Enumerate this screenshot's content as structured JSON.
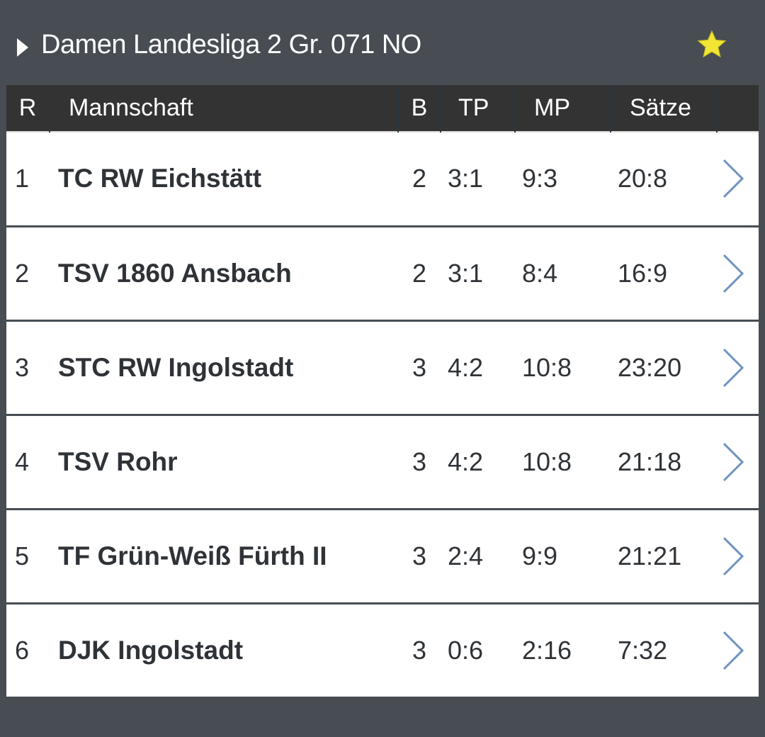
{
  "header": {
    "title": "Damen Landesliga 2 Gr. 071 NO",
    "favorite_color": "#f2e533"
  },
  "table": {
    "columns": [
      "R",
      "Mannschaft",
      "B",
      "TP",
      "MP",
      "Sätze"
    ],
    "rows": [
      {
        "rank": "1",
        "team": "TC RW Eichstätt",
        "b": "2",
        "tp": "3:1",
        "mp": "9:3",
        "saetze": "20:8"
      },
      {
        "rank": "2",
        "team": "TSV 1860 Ansbach",
        "b": "2",
        "tp": "3:1",
        "mp": "8:4",
        "saetze": "16:9"
      },
      {
        "rank": "3",
        "team": "STC RW Ingolstadt",
        "b": "3",
        "tp": "4:2",
        "mp": "10:8",
        "saetze": "23:20"
      },
      {
        "rank": "4",
        "team": "TSV Rohr",
        "b": "3",
        "tp": "4:2",
        "mp": "10:8",
        "saetze": "21:18"
      },
      {
        "rank": "5",
        "team": "TF Grün-Weiß Fürth II",
        "b": "3",
        "tp": "2:4",
        "mp": "9:9",
        "saetze": "21:21"
      },
      {
        "rank": "6",
        "team": "DJK Ingolstadt",
        "b": "3",
        "tp": "0:6",
        "mp": "2:16",
        "saetze": "7:32"
      }
    ]
  }
}
